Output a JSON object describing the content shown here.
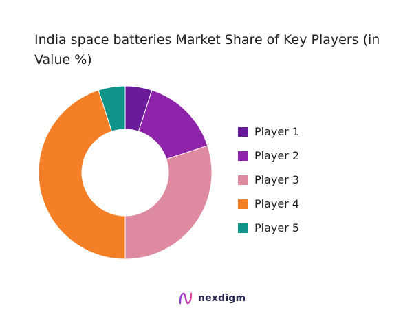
{
  "chart_data": {
    "type": "pie",
    "title": "India space batteries Market Share of Key Players (in Value %)",
    "donut": true,
    "legend_position": "right",
    "categories": [
      "Player 1",
      "Player 2",
      "Player 3",
      "Player 4",
      "Player 5"
    ],
    "values": [
      5,
      15,
      30,
      45,
      5
    ],
    "colors": [
      "#6a1b9a",
      "#8e24aa",
      "#de8aa0",
      "#f47f27",
      "#0e9488"
    ]
  },
  "brand": {
    "name": "nexdigm",
    "logo_icon": "nexdigm-logo-icon"
  }
}
